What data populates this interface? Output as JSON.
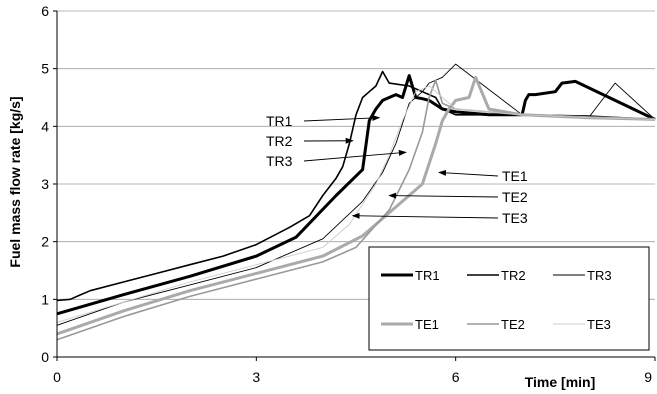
{
  "chart_data": {
    "type": "line",
    "title": "",
    "xlabel": "Time [min]",
    "ylabel": "Fuel mass flow rate [kg/s]",
    "xlim": [
      0,
      9
    ],
    "ylim": [
      0,
      6
    ],
    "xticks": [
      0,
      3,
      6,
      9
    ],
    "yticks": [
      0,
      1,
      2,
      3,
      4,
      5,
      6
    ],
    "xtick_labels": [
      "0",
      "3",
      "6",
      "9"
    ],
    "ytick_labels": [
      "0",
      "1",
      "2",
      "3",
      "4",
      "5",
      "6"
    ],
    "grid": "horizontal",
    "legend": {
      "position": "bottom-right",
      "columns": 3
    },
    "series": [
      {
        "name": "TR1",
        "color": "#000000",
        "width": "thick",
        "x": [
          0,
          1.0,
          2.0,
          3.0,
          3.6,
          4.2,
          4.6,
          4.7,
          4.8,
          4.9,
          5.0,
          5.1,
          5.2,
          5.3,
          5.4,
          5.5,
          5.6,
          5.8,
          6.0,
          6.5,
          7.0,
          7.05,
          7.1,
          7.2,
          7.5,
          7.6,
          7.8,
          9.0
        ],
        "y": [
          0.75,
          1.08,
          1.4,
          1.75,
          2.08,
          2.8,
          3.25,
          4.1,
          4.3,
          4.45,
          4.5,
          4.55,
          4.5,
          4.88,
          4.5,
          4.48,
          4.45,
          4.3,
          4.25,
          4.2,
          4.2,
          4.45,
          4.55,
          4.55,
          4.6,
          4.75,
          4.78,
          4.12
        ]
      },
      {
        "name": "TR2",
        "color": "#000000",
        "width": "medium",
        "x": [
          0,
          0.2,
          0.3,
          0.5,
          1.0,
          1.5,
          2.0,
          2.5,
          3.0,
          3.5,
          3.8,
          4.0,
          4.2,
          4.3,
          4.4,
          4.5,
          4.6,
          4.7,
          4.8,
          4.9,
          5.0,
          5.3,
          5.5,
          5.7,
          5.8,
          6.0,
          6.5,
          7.0,
          8.0,
          9.0
        ],
        "y": [
          0.98,
          1.0,
          1.05,
          1.15,
          1.3,
          1.45,
          1.6,
          1.75,
          1.95,
          2.25,
          2.45,
          2.8,
          3.1,
          3.3,
          3.7,
          4.2,
          4.5,
          4.6,
          4.7,
          4.95,
          4.75,
          4.7,
          4.6,
          4.5,
          4.3,
          4.2,
          4.2,
          4.2,
          4.18,
          4.12
        ]
      },
      {
        "name": "TR3",
        "color": "#000000",
        "width": "thin",
        "x": [
          0,
          1.0,
          2.0,
          3.0,
          4.0,
          4.6,
          4.9,
          5.1,
          5.3,
          5.5,
          5.6,
          5.8,
          6.0,
          7.0,
          8.0,
          8.1,
          8.2,
          8.4,
          9.0
        ],
        "y": [
          0.55,
          0.95,
          1.25,
          1.55,
          2.05,
          2.7,
          3.2,
          3.7,
          4.4,
          4.6,
          4.75,
          4.85,
          5.08,
          4.2,
          4.15,
          4.3,
          4.45,
          4.75,
          4.12
        ]
      },
      {
        "name": "TE1",
        "color": "#aaaaaa",
        "width": "thick",
        "x": [
          0,
          1.0,
          2.0,
          3.0,
          4.0,
          4.6,
          5.0,
          5.5,
          5.7,
          5.8,
          5.9,
          6.0,
          6.2,
          6.3,
          6.5,
          7.0,
          8.0,
          9.0
        ],
        "y": [
          0.4,
          0.8,
          1.15,
          1.45,
          1.75,
          2.1,
          2.5,
          3.0,
          3.7,
          4.1,
          4.3,
          4.45,
          4.5,
          4.85,
          4.3,
          4.2,
          4.15,
          4.12
        ]
      },
      {
        "name": "TE2",
        "color": "#999999",
        "width": "medium",
        "x": [
          0,
          1.0,
          2.0,
          3.0,
          4.0,
          4.5,
          5.0,
          5.3,
          5.5,
          5.6,
          5.7,
          5.8,
          6.0,
          7.0,
          8.0,
          9.0
        ],
        "y": [
          0.3,
          0.7,
          1.05,
          1.35,
          1.65,
          1.9,
          2.55,
          3.25,
          3.9,
          4.5,
          4.8,
          4.4,
          4.3,
          4.2,
          4.15,
          4.12
        ]
      },
      {
        "name": "TE3",
        "color": "#cccccc",
        "width": "thin",
        "x": [
          0,
          1.0,
          2.0,
          3.0,
          4.0,
          4.4,
          4.8,
          5.0,
          5.2,
          5.4,
          5.6,
          5.8,
          6.0,
          7.0,
          8.0,
          9.0
        ],
        "y": [
          0.6,
          0.95,
          1.3,
          1.6,
          1.9,
          2.3,
          3.0,
          3.5,
          4.1,
          4.6,
          4.7,
          4.5,
          4.3,
          4.2,
          4.15,
          4.12
        ]
      }
    ],
    "annotations": [
      {
        "text": "TR1",
        "side": "left",
        "arrow_to": [
          4.85,
          4.15
        ]
      },
      {
        "text": "TR2",
        "side": "left",
        "arrow_to": [
          4.45,
          3.75
        ]
      },
      {
        "text": "TR3",
        "side": "left",
        "arrow_to": [
          5.25,
          3.55
        ]
      },
      {
        "text": "TE1",
        "side": "right",
        "arrow_to": [
          5.75,
          3.2
        ]
      },
      {
        "text": "TE2",
        "side": "right",
        "arrow_to": [
          5.0,
          2.8
        ]
      },
      {
        "text": "TE3",
        "side": "right",
        "arrow_to": [
          4.45,
          2.45
        ]
      }
    ]
  }
}
